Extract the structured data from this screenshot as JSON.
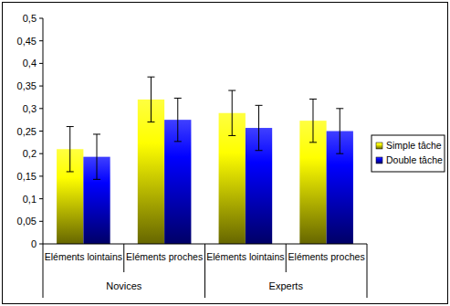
{
  "chart_data": {
    "type": "bar",
    "categories": [
      "Eléments lointains",
      "Eléments proches",
      "Eléments lointains",
      "Eléments proches"
    ],
    "groups": [
      {
        "label": "Novices",
        "size": 2
      },
      {
        "label": "Experts",
        "size": 2
      }
    ],
    "series": [
      {
        "name": "Simple tâche",
        "color": "#ffff00",
        "values": [
          0.21,
          0.32,
          0.29,
          0.273
        ],
        "errors": [
          0.05,
          0.05,
          0.05,
          0.048
        ]
      },
      {
        "name": "Double tâche",
        "color": "#0000ff",
        "values": [
          0.193,
          0.275,
          0.257,
          0.25
        ],
        "errors": [
          0.05,
          0.048,
          0.05,
          0.05
        ]
      }
    ],
    "ylim": [
      0,
      0.5
    ],
    "yticks": [
      0,
      {
        "value": 0.05,
        "label": "0,05"
      },
      {
        "value": 0.1,
        "label": "0,1"
      },
      {
        "value": 0.15,
        "label": "0,15"
      },
      {
        "value": 0.2,
        "label": "0,2"
      },
      {
        "value": 0.25,
        "label": "0,25"
      },
      {
        "value": 0.3,
        "label": "0,3"
      },
      {
        "value": 0.35,
        "label": "0,35"
      },
      {
        "value": 0.4,
        "label": "0,4"
      },
      {
        "value": 0.45,
        "label": "0,45"
      },
      {
        "value": 0.5,
        "label": "0,5"
      }
    ],
    "grid": false,
    "legend": "right"
  }
}
